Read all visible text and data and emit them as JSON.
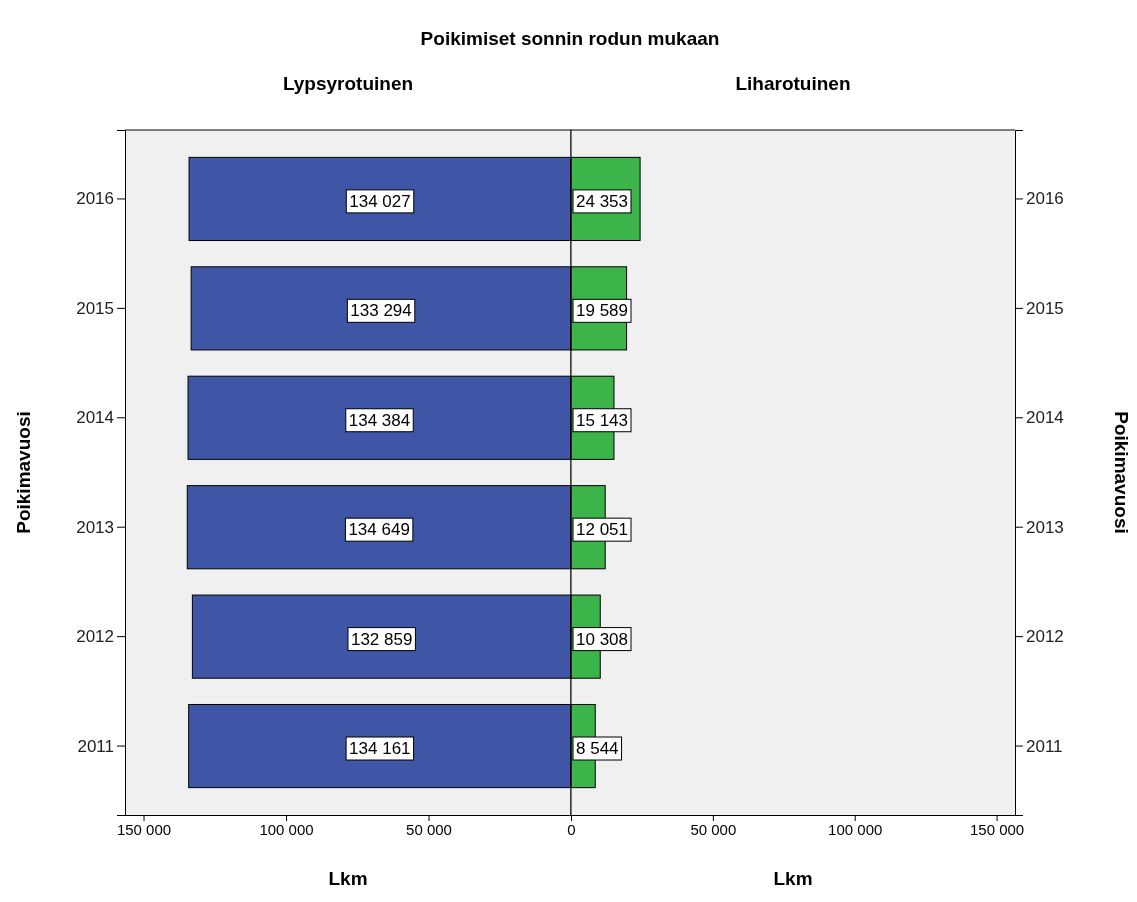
{
  "chart_data": [
    {
      "type": "bar",
      "orientation": "horizontal",
      "title": "Lypsyrotuinen",
      "xlabel": "Lkm",
      "ylabel": "Poikimavuosi",
      "annotations": [
        "Poikimiset sonnin rodun mukaan"
      ],
      "categories": [
        "2016",
        "2015",
        "2014",
        "2013",
        "2012",
        "2011"
      ],
      "series": [
        {
          "color": "#3f56a6",
          "values": [
            134027,
            133294,
            134384,
            134649,
            132859,
            134161
          ],
          "value_labels": [
            "134 027",
            "133 294",
            "134 384",
            "134 649",
            "132 859",
            "134 161"
          ]
        }
      ],
      "xlim": [
        156500,
        0
      ],
      "xticks": [
        {
          "value": 150000,
          "label": "150 000"
        },
        {
          "value": 100000,
          "label": "100 000"
        },
        {
          "value": 50000,
          "label": "50 000"
        },
        0
      ],
      "grid": false
    },
    {
      "type": "bar",
      "orientation": "horizontal",
      "title": "Liharotuinen",
      "xlabel": "Lkm",
      "ylabel": "Poikimavuosi",
      "categories": [
        "2016",
        "2015",
        "2014",
        "2013",
        "2012",
        "2011"
      ],
      "series": [
        {
          "color": "#3cb44a",
          "values": [
            24353,
            19589,
            15143,
            12051,
            10308,
            8544
          ],
          "value_labels": [
            "24 353",
            "19 589",
            "15 143",
            "12 051",
            "10 308",
            "8 544"
          ]
        }
      ],
      "xlim": [
        0,
        156500
      ],
      "xticks": [
        {
          "value": 0,
          "label": null
        },
        {
          "value": 50000,
          "label": "50 000"
        },
        {
          "value": 100000,
          "label": "100 000"
        },
        {
          "value": 150000,
          "label": "150 000"
        }
      ],
      "grid": false
    }
  ]
}
